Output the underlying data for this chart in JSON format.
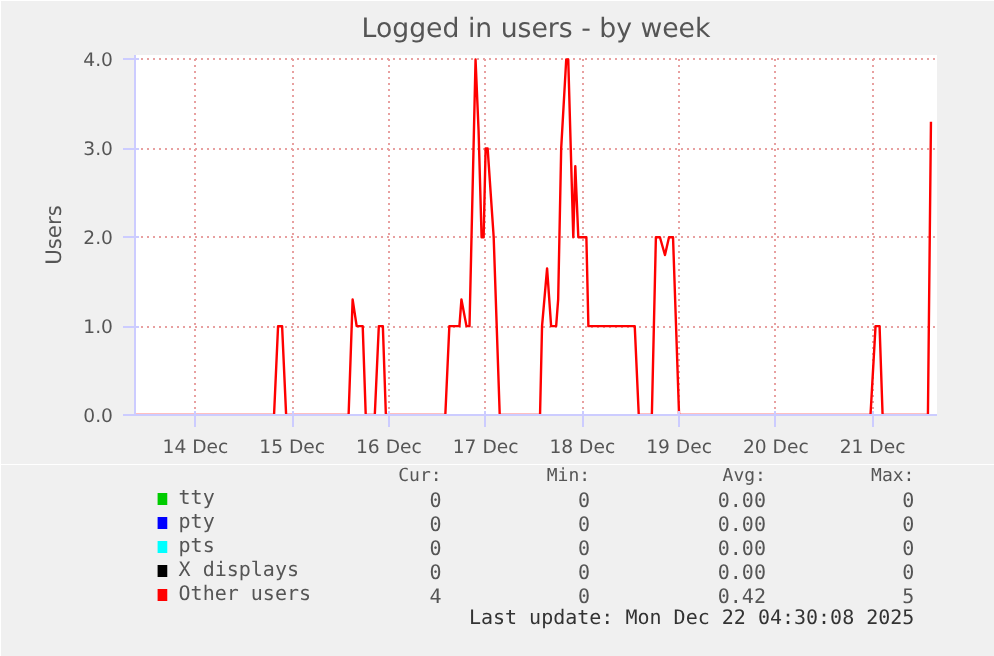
{
  "chart_data": {
    "type": "line",
    "title": "Logged in users - by week",
    "ylabel": "Users",
    "xlim": [
      "2025-12-13T09:00",
      "2025-12-21T16:00"
    ],
    "ylim": [
      0,
      4.05
    ],
    "xticks": [
      {
        "value": "2025-12-14",
        "label": "14 Dec"
      },
      {
        "value": "2025-12-15",
        "label": "15 Dec"
      },
      {
        "value": "2025-12-16",
        "label": "16 Dec"
      },
      {
        "value": "2025-12-17",
        "label": "17 Dec"
      },
      {
        "value": "2025-12-18",
        "label": "18 Dec"
      },
      {
        "value": "2025-12-19",
        "label": "19 Dec"
      },
      {
        "value": "2025-12-20",
        "label": "20 Dec"
      },
      {
        "value": "2025-12-21",
        "label": "21 Dec"
      }
    ],
    "yticks": [
      {
        "value": 0,
        "label": "0.0"
      },
      {
        "value": 1,
        "label": "1.0"
      },
      {
        "value": 2,
        "label": "2.0"
      },
      {
        "value": 3,
        "label": "3.0"
      },
      {
        "value": 4,
        "label": "4.0"
      }
    ],
    "grid": true,
    "legend": "bottom",
    "marker": "none",
    "line_style": "solid",
    "series": [
      {
        "name": "tty",
        "color": "#00cc00"
      },
      {
        "name": "pty",
        "color": "#0000ff"
      },
      {
        "name": "pts",
        "color": "#00ffff"
      },
      {
        "name": "X displays",
        "color": "#000000"
      },
      {
        "name": "Other users",
        "color": "#ff0000",
        "x": [
          "2025-12-13T09:00",
          "2025-12-14T19:30",
          "2025-12-14T20:30",
          "2025-12-14T21:30",
          "2025-12-14T22:30",
          "2025-12-15T14:00",
          "2025-12-15T15:00",
          "2025-12-15T16:00",
          "2025-12-15T17:30",
          "2025-12-15T18:15",
          "2025-12-15T20:30",
          "2025-12-15T21:30",
          "2025-12-15T22:30",
          "2025-12-15T23:15",
          "2025-12-16T14:00",
          "2025-12-16T15:00",
          "2025-12-16T17:30",
          "2025-12-16T18:00",
          "2025-12-16T19:15",
          "2025-12-16T20:00",
          "2025-12-16T21:30",
          "2025-12-16T22:15",
          "2025-12-16T23:00",
          "2025-12-16T23:30",
          "2025-12-17T00:00",
          "2025-12-17T00:30",
          "2025-12-17T02:00",
          "2025-12-17T03:30",
          "2025-12-17T13:30",
          "2025-12-17T14:00",
          "2025-12-17T15:15",
          "2025-12-17T16:15",
          "2025-12-17T17:30",
          "2025-12-17T18:00",
          "2025-12-17T18:45",
          "2025-12-17T20:00",
          "2025-12-17T20:30",
          "2025-12-17T21:45",
          "2025-12-17T22:15",
          "2025-12-17T23:00",
          "2025-12-18T01:00",
          "2025-12-18T01:30",
          "2025-12-18T13:00",
          "2025-12-18T14:00",
          "2025-12-18T17:15",
          "2025-12-18T18:15",
          "2025-12-18T19:15",
          "2025-12-18T20:30",
          "2025-12-18T21:30",
          "2025-12-18T22:30",
          "2025-12-19T00:00",
          "2025-12-20T23:30",
          "2025-12-21T00:45",
          "2025-12-21T01:45",
          "2025-12-21T02:30",
          "2025-12-21T13:45",
          "2025-12-21T14:30"
        ],
        "values": [
          0,
          0,
          1,
          1,
          0,
          0,
          1.3,
          1,
          1,
          0,
          0,
          1,
          1,
          0,
          0,
          1,
          1,
          1.3,
          1,
          1,
          4,
          3.2,
          2,
          2,
          3,
          3,
          2,
          0,
          0,
          1,
          1.65,
          1,
          1,
          1.3,
          3,
          4,
          4,
          2,
          2.8,
          2,
          2,
          1,
          1,
          0,
          0,
          2,
          2,
          1.8,
          2,
          2,
          0,
          0,
          1,
          1,
          0,
          0,
          3.3
        ]
      }
    ],
    "annotations": [
      "Cur:",
      "Min:",
      "Avg:",
      "Max:",
      "0",
      "0",
      "0.00",
      "0",
      "0",
      "0",
      "0.00",
      "0",
      "0",
      "0",
      "0.00",
      "0",
      "0",
      "0",
      "0.00",
      "0",
      "4",
      "0",
      "0.42",
      "5",
      "Last update: Mon Dec 22 04:30:08 2025"
    ]
  }
}
